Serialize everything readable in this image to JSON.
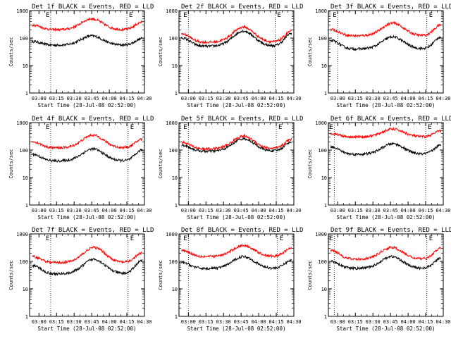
{
  "colors": {
    "events": "#000000",
    "lld": "#ff0000",
    "axis": "#000000"
  },
  "chart_data": [
    {
      "type": "line",
      "title": "Det 1f BLACK = Events, RED = LLD",
      "xlabel": "Start Time (28-Jul-08 02:52:00)",
      "ylabel": "Counts/sec",
      "yscale": "log",
      "ylim": [
        1,
        1000
      ],
      "xlim": [
        172,
        270
      ],
      "x_ticks": [
        "03:00",
        "03:15",
        "03:30",
        "03:45",
        "04:00",
        "04:15",
        "04:30"
      ],
      "y_ticks": [
        "1",
        "10",
        "100",
        "1000"
      ],
      "markers": [
        {
          "label": "E",
          "x": 190
        },
        {
          "label": "E",
          "x": 255
        }
      ],
      "series": [
        {
          "name": "Events",
          "color": "#000000",
          "shape": {
            "baseline": 55,
            "peak": 120,
            "peak_x": 225,
            "start": 75,
            "start_x": 175,
            "end": 95,
            "end_x": 268
          }
        },
        {
          "name": "LLD",
          "color": "#ff0000",
          "shape": {
            "baseline": 200,
            "peak": 500,
            "peak_x": 225,
            "start": 300,
            "start_x": 175,
            "end": 380,
            "end_x": 268
          }
        }
      ]
    },
    {
      "type": "line",
      "title": "Det 2f BLACK = Events, RED = LLD",
      "xlabel": "Start Time (28-Jul-08 02:52:00)",
      "ylabel": "Counts/sec",
      "yscale": "log",
      "ylim": [
        1,
        1000
      ],
      "xlim": [
        172,
        270
      ],
      "x_ticks": [
        "03:00",
        "03:15",
        "03:30",
        "03:45",
        "04:00",
        "04:15",
        "04:30"
      ],
      "y_ticks": [
        "1",
        "10",
        "100",
        "1000"
      ],
      "markers": [
        {
          "label": "E",
          "x": 180
        },
        {
          "label": "E",
          "x": 254
        }
      ],
      "series": [
        {
          "name": "Events",
          "color": "#000000",
          "shape": {
            "baseline": 50,
            "peak": 180,
            "peak_x": 227,
            "start": 100,
            "start_x": 175,
            "end": 150,
            "end_x": 268
          }
        },
        {
          "name": "LLD",
          "color": "#ff0000",
          "shape": {
            "baseline": 70,
            "peak": 250,
            "peak_x": 227,
            "start": 140,
            "start_x": 175,
            "end": 180,
            "end_x": 268
          }
        }
      ]
    },
    {
      "type": "line",
      "title": "Det 3f BLACK = Events, RED = LLD",
      "xlabel": "Start Time (28-Jul-08 02:52:00)",
      "ylabel": "Counts/sec",
      "yscale": "log",
      "ylim": [
        1,
        1000
      ],
      "xlim": [
        172,
        270
      ],
      "x_ticks": [
        "03:00",
        "03:15",
        "03:30",
        "03:45",
        "04:00",
        "04:15",
        "04:30"
      ],
      "y_ticks": [
        "1",
        "10",
        "100",
        "1000"
      ],
      "markers": [
        {
          "label": "E",
          "x": 180
        },
        {
          "label": "E",
          "x": 256
        }
      ],
      "series": [
        {
          "name": "Events",
          "color": "#000000",
          "shape": {
            "baseline": 40,
            "peak": 110,
            "peak_x": 227,
            "start": 80,
            "start_x": 175,
            "end": 110,
            "end_x": 268
          }
        },
        {
          "name": "LLD",
          "color": "#ff0000",
          "shape": {
            "baseline": 120,
            "peak": 350,
            "peak_x": 227,
            "start": 200,
            "start_x": 175,
            "end": 300,
            "end_x": 268
          }
        }
      ]
    },
    {
      "type": "line",
      "title": "Det 4f BLACK = Events, RED = LLD",
      "xlabel": "Start Time (28-Jul-08 02:52:00)",
      "ylabel": "Counts/sec",
      "yscale": "log",
      "ylim": [
        1,
        1000
      ],
      "xlim": [
        172,
        270
      ],
      "x_ticks": [
        "03:00",
        "03:15",
        "03:30",
        "03:45",
        "04:00",
        "04:15",
        "04:30"
      ],
      "y_ticks": [
        "1",
        "10",
        "100",
        "1000"
      ],
      "markers": [
        {
          "label": "E",
          "x": 190
        },
        {
          "label": "E",
          "x": 256
        }
      ],
      "series": [
        {
          "name": "Events",
          "color": "#000000",
          "shape": {
            "baseline": 40,
            "peak": 110,
            "peak_x": 226,
            "start": 70,
            "start_x": 175,
            "end": 100,
            "end_x": 268
          }
        },
        {
          "name": "LLD",
          "color": "#ff0000",
          "shape": {
            "baseline": 120,
            "peak": 350,
            "peak_x": 226,
            "start": 200,
            "start_x": 175,
            "end": 250,
            "end_x": 268
          }
        }
      ]
    },
    {
      "type": "line",
      "title": "Det 5f BLACK = Events, RED = LLD",
      "xlabel": "Start Time (28-Jul-08 02:52:00)",
      "ylabel": "Counts/sec",
      "yscale": "log",
      "ylim": [
        1,
        1000
      ],
      "xlim": [
        172,
        270
      ],
      "x_ticks": [
        "03:00",
        "03:15",
        "03:30",
        "03:45",
        "04:00",
        "04:15",
        "04:30"
      ],
      "y_ticks": [
        "1",
        "10",
        "100",
        "1000"
      ],
      "markers": [
        {
          "label": "E",
          "x": 180
        },
        {
          "label": "E",
          "x": 255
        }
      ],
      "series": [
        {
          "name": "Events",
          "color": "#000000",
          "shape": {
            "baseline": 90,
            "peak": 260,
            "peak_x": 227,
            "start": 150,
            "start_x": 175,
            "end": 200,
            "end_x": 268
          }
        },
        {
          "name": "LLD",
          "color": "#ff0000",
          "shape": {
            "baseline": 110,
            "peak": 320,
            "peak_x": 227,
            "start": 190,
            "start_x": 175,
            "end": 250,
            "end_x": 268
          }
        }
      ]
    },
    {
      "type": "line",
      "title": "Det 6f BLACK = Events, RED = LLD",
      "xlabel": "Start Time (28-Jul-08 02:52:00)",
      "ylabel": "Counts/sec",
      "yscale": "log",
      "ylim": [
        1,
        1000
      ],
      "xlim": [
        172,
        270
      ],
      "x_ticks": [
        "03:00",
        "03:15",
        "03:30",
        "03:45",
        "04:00",
        "04:15",
        "04:30"
      ],
      "y_ticks": [
        "1",
        "10",
        "100",
        "1000"
      ],
      "markers": [
        {
          "label": "E",
          "x": 177
        },
        {
          "label": "E",
          "x": 255
        }
      ],
      "series": [
        {
          "name": "Events",
          "color": "#000000",
          "shape": {
            "baseline": 70,
            "peak": 170,
            "peak_x": 227,
            "start": 130,
            "start_x": 175,
            "end": 150,
            "end_x": 268
          }
        },
        {
          "name": "LLD",
          "color": "#ff0000",
          "shape": {
            "baseline": 300,
            "peak": 580,
            "peak_x": 227,
            "start": 400,
            "start_x": 175,
            "end": 500,
            "end_x": 268
          }
        }
      ]
    },
    {
      "type": "line",
      "title": "Det 7f BLACK = Events, RED = LLD",
      "xlabel": "Start Time (28-Jul-08 02:52:00)",
      "ylabel": "Counts/sec",
      "yscale": "log",
      "ylim": [
        1,
        1000
      ],
      "xlim": [
        172,
        270
      ],
      "x_ticks": [
        "03:00",
        "03:15",
        "03:30",
        "03:45",
        "04:00",
        "04:15",
        "04:30"
      ],
      "y_ticks": [
        "1",
        "10",
        "100",
        "1000"
      ],
      "markers": [
        {
          "label": "E",
          "x": 190
        },
        {
          "label": "E",
          "x": 256
        }
      ],
      "series": [
        {
          "name": "Events",
          "color": "#000000",
          "shape": {
            "baseline": 35,
            "peak": 120,
            "peak_x": 227,
            "start": 70,
            "start_x": 175,
            "end": 110,
            "end_x": 268
          }
        },
        {
          "name": "LLD",
          "color": "#ff0000",
          "shape": {
            "baseline": 90,
            "peak": 320,
            "peak_x": 227,
            "start": 150,
            "start_x": 175,
            "end": 200,
            "end_x": 268
          }
        }
      ]
    },
    {
      "type": "line",
      "title": "Det 8f BLACK = Events, RED = LLD",
      "xlabel": "Start Time (28-Jul-08 02:52:00)",
      "ylabel": "Counts/sec",
      "yscale": "log",
      "ylim": [
        1,
        1000
      ],
      "xlim": [
        172,
        270
      ],
      "x_ticks": [
        "03:00",
        "03:15",
        "03:30",
        "03:45",
        "04:00",
        "04:15",
        "04:30"
      ],
      "y_ticks": [
        "1",
        "10",
        "100",
        "1000"
      ],
      "markers": [
        {
          "label": "E",
          "x": 180
        },
        {
          "label": "E",
          "x": 256
        }
      ],
      "series": [
        {
          "name": "Events",
          "color": "#000000",
          "shape": {
            "baseline": 55,
            "peak": 150,
            "peak_x": 227,
            "start": 90,
            "start_x": 175,
            "end": 110,
            "end_x": 268
          }
        },
        {
          "name": "LLD",
          "color": "#ff0000",
          "shape": {
            "baseline": 150,
            "peak": 380,
            "peak_x": 227,
            "start": 250,
            "start_x": 175,
            "end": 300,
            "end_x": 268
          }
        }
      ]
    },
    {
      "type": "line",
      "title": "Det 9f BLACK = Events, RED = LLD",
      "xlabel": "Start Time (28-Jul-08 02:52:00)",
      "ylabel": "Counts/sec",
      "yscale": "log",
      "ylim": [
        1,
        1000
      ],
      "xlim": [
        172,
        270
      ],
      "x_ticks": [
        "03:00",
        "03:15",
        "03:30",
        "03:45",
        "04:00",
        "04:15",
        "04:30"
      ],
      "y_ticks": [
        "1",
        "10",
        "100",
        "1000"
      ],
      "markers": [
        {
          "label": "E",
          "x": 177
        },
        {
          "label": "E",
          "x": 256
        }
      ],
      "series": [
        {
          "name": "Events",
          "color": "#000000",
          "shape": {
            "baseline": 55,
            "peak": 150,
            "peak_x": 226,
            "start": 100,
            "start_x": 175,
            "end": 130,
            "end_x": 268
          }
        },
        {
          "name": "LLD",
          "color": "#ff0000",
          "shape": {
            "baseline": 120,
            "peak": 320,
            "peak_x": 226,
            "start": 250,
            "start_x": 175,
            "end": 300,
            "end_x": 268
          }
        }
      ]
    }
  ]
}
